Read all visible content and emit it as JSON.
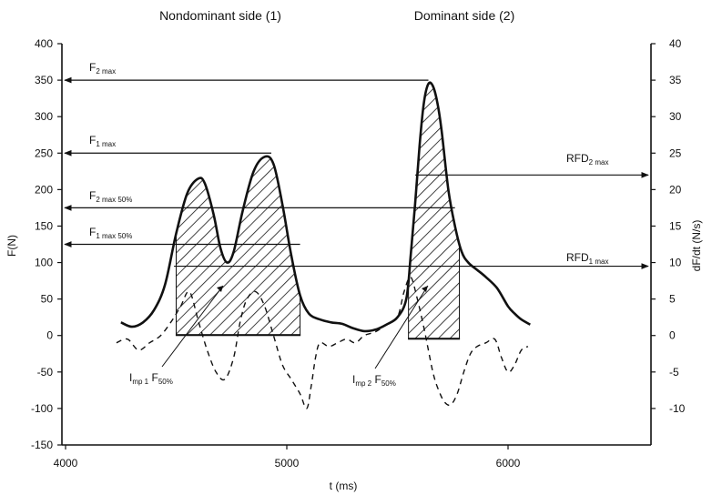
{
  "chart_data": {
    "type": "line",
    "headers": [
      "Nondominant side (1)",
      "Dominant side (2)"
    ],
    "xlabel": "t (ms)",
    "ylabel": "F(N)",
    "y2label": "dF/dt (N/s)",
    "xlim": [
      4000,
      6650
    ],
    "ylim": [
      -150,
      400
    ],
    "y2lim": [
      -15,
      40
    ],
    "x_ticks": [
      4000,
      5000,
      6000
    ],
    "y_ticks": [
      400,
      350,
      300,
      250,
      200,
      150,
      100,
      50,
      0,
      -50,
      -100,
      -150
    ],
    "y2_ticks": [
      40,
      35,
      30,
      25,
      20,
      15,
      10,
      5,
      0,
      -5,
      -10
    ],
    "series": [
      {
        "x": [
          4250,
          4300,
          4350,
          4400,
          4450,
          4500,
          4550,
          4600,
          4630,
          4670,
          4700,
          4730,
          4760,
          4800,
          4850,
          4900,
          4940,
          4980,
          5020,
          5060,
          5100,
          5150,
          5200,
          5250,
          5300,
          5350,
          5400,
          5450,
          5500,
          5540,
          5560,
          5580,
          5600,
          5620,
          5640,
          5660,
          5680,
          5700,
          5730,
          5760,
          5790,
          5820,
          5860,
          5900,
          5950,
          6000,
          6030,
          6060,
          6100
        ],
        "values": [
          18,
          12,
          18,
          35,
          70,
          140,
          195,
          215,
          208,
          165,
          120,
          100,
          115,
          170,
          225,
          245,
          235,
          180,
          110,
          55,
          30,
          22,
          18,
          16,
          10,
          6,
          8,
          15,
          25,
          50,
          110,
          180,
          260,
          320,
          345,
          342,
          320,
          280,
          200,
          150,
          115,
          100,
          90,
          80,
          65,
          40,
          30,
          22,
          15
        ]
      },
      {
        "x": [
          4230,
          4280,
          4330,
          4380,
          4430,
          4480,
          4520,
          4560,
          4600,
          4640,
          4680,
          4720,
          4760,
          4790,
          4820,
          4860,
          4900,
          4940,
          4980,
          5020,
          5060,
          5090,
          5110,
          5130,
          5150,
          5190,
          5230,
          5270,
          5310,
          5350,
          5400,
          5450,
          5500,
          5530,
          5560,
          5590,
          5620,
          5640,
          5660,
          5680,
          5710,
          5740,
          5770,
          5800,
          5830,
          5860,
          5900,
          5940,
          5970,
          6000,
          6030,
          6060,
          6090
        ],
        "values": [
          -1,
          -0.5,
          -2,
          -1,
          0,
          2,
          4,
          6,
          2,
          -2,
          -5,
          -6,
          -3,
          2,
          5,
          6,
          4,
          0,
          -4,
          -6,
          -8,
          -10,
          -7,
          -3,
          -1,
          -1.5,
          -1,
          -0.5,
          -1,
          0,
          0.5,
          1.5,
          2.5,
          6,
          8,
          5,
          1,
          -2,
          -5,
          -7,
          -9,
          -9.5,
          -8,
          -5,
          -2.5,
          -1.5,
          -1,
          -0.5,
          -3,
          -5,
          -4,
          -2,
          -1.5
        ]
      }
    ],
    "annotations": [
      {
        "text": "F",
        "sub": "2 max",
        "y": 350
      },
      {
        "text": "F",
        "sub": "1 max",
        "y": 250
      },
      {
        "text": "F",
        "sub": "2 max 50%",
        "y": 175
      },
      {
        "text": "F",
        "sub": "1 max 50%",
        "y": 125
      },
      {
        "text": "RFD",
        "sub": "2 max",
        "y2": 22
      },
      {
        "text": "RFD",
        "sub": "1 max",
        "y2": 9.5
      },
      {
        "text": "I",
        "sub": "mp 1",
        "text2": " F",
        "sub2": "50%"
      },
      {
        "text": "I",
        "sub": "mp 2",
        "text2": " F",
        "sub2": "50%"
      }
    ],
    "hatched_regions": [
      {
        "x": [
          4500,
          5060
        ],
        "y": [
          0,
          250
        ]
      },
      {
        "x": [
          5550,
          5780
        ],
        "y": [
          -5,
          345
        ]
      }
    ],
    "grid": false,
    "legend": "none"
  }
}
